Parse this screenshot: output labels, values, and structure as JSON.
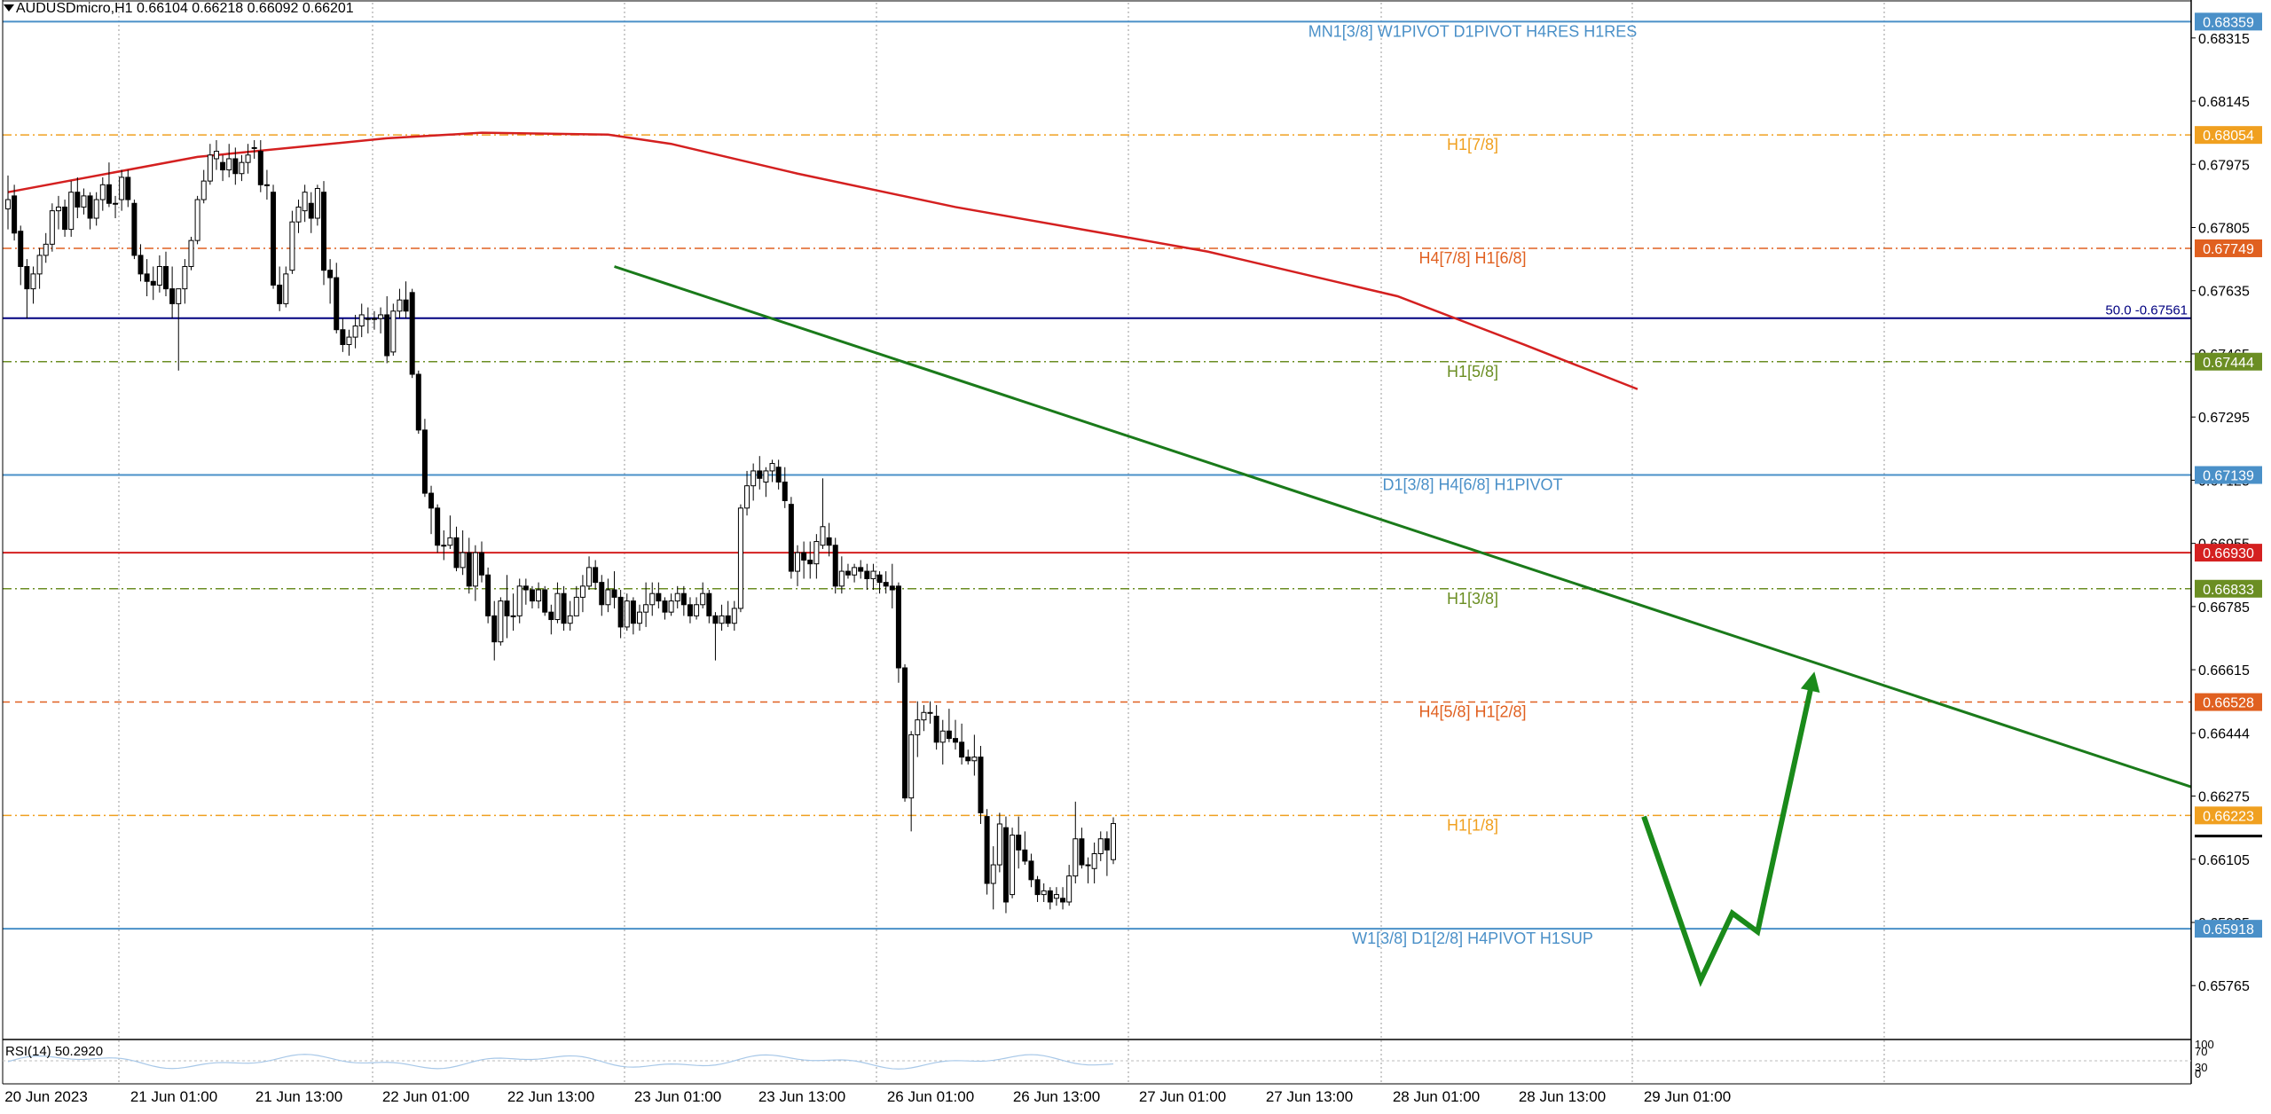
{
  "header": {
    "symbol_info": "AUDUSDmicro,H1  0.66104 0.66218 0.66092 0.66201"
  },
  "rsi_panel": {
    "label": "RSI(14) 50.2920",
    "scale_labels": [
      "100",
      "70",
      "30",
      "0"
    ]
  },
  "chart_data": {
    "type": "candlestick",
    "symbol": "AUDUSDmicro",
    "timeframe": "H1",
    "ylim": [
      0.6562,
      0.6841
    ],
    "y_ticks": [
      "0.68315",
      "0.68145",
      "0.67975",
      "0.67805",
      "0.67635",
      "0.67465",
      "0.67295",
      "0.67125",
      "0.66955",
      "0.66785",
      "0.66615",
      "0.66444",
      "0.66275",
      "0.66105",
      "0.65935",
      "0.65765"
    ],
    "x_ticks": [
      "20 Jun 2023",
      "21 Jun 01:00",
      "21 Jun 13:00",
      "22 Jun 01:00",
      "22 Jun 13:00",
      "23 Jun 01:00",
      "23 Jun 13:00",
      "26 Jun 01:00",
      "26 Jun 13:00",
      "27 Jun 01:00",
      "27 Jun 13:00",
      "28 Jun 01:00",
      "28 Jun 13:00",
      "29 Jun 01:00"
    ],
    "levels": [
      {
        "price": 0.68359,
        "price_label": "0.68359",
        "label": "MN1[3/8] W1PIVOT D1PIVOT H4RES H1RES",
        "color": "#4a90c8",
        "style": "solid"
      },
      {
        "price": 0.68054,
        "price_label": "0.68054",
        "label": "H1[7/8]",
        "color": "#f0a020",
        "style": "dashdot"
      },
      {
        "price": 0.67749,
        "price_label": "0.67749",
        "label": "H4[7/8] H1[6/8]",
        "color": "#e06020",
        "style": "dashdot"
      },
      {
        "price": 0.67561,
        "price_label": "",
        "label": "50.0 -0.67561",
        "color": "#000080",
        "style": "solid"
      },
      {
        "price": 0.67444,
        "price_label": "0.67444",
        "label": "H1[5/8]",
        "color": "#6b8e23",
        "style": "dashdot"
      },
      {
        "price": 0.67139,
        "price_label": "0.67139",
        "label": "D1[3/8] H4[6/8] H1PIVOT",
        "color": "#4a90c8",
        "style": "solid"
      },
      {
        "price": 0.6693,
        "price_label": "0.66930",
        "label": "",
        "color": "#d42020",
        "style": "solid"
      },
      {
        "price": 0.66833,
        "price_label": "0.66833",
        "label": "H1[3/8]",
        "color": "#6b8e23",
        "style": "dashdot"
      },
      {
        "price": 0.66528,
        "price_label": "0.66528",
        "label": "H4[5/8] H1[2/8]",
        "color": "#e06020",
        "style": "dashed"
      },
      {
        "price": 0.66223,
        "price_label": "0.66223",
        "label": "H1[1/8]",
        "color": "#f0a020",
        "style": "dashdot"
      },
      {
        "price": 0.65918,
        "price_label": "0.65918",
        "label": "W1[3/8] D1[2/8] H4PIVOT H1SUP",
        "color": "#4a90c8",
        "style": "solid"
      }
    ],
    "moving_average": {
      "color": "#d42020",
      "points": [
        [
          0,
          0.679
        ],
        [
          30,
          0.67995
        ],
        [
          60,
          0.68045
        ],
        [
          75,
          0.6806
        ],
        [
          95,
          0.68055
        ],
        [
          105,
          0.6803
        ],
        [
          125,
          0.6795
        ],
        [
          150,
          0.6786
        ],
        [
          170,
          0.678
        ],
        [
          190,
          0.6774
        ],
        [
          220,
          0.6762
        ],
        [
          240,
          0.6749
        ],
        [
          258,
          0.6737
        ]
      ]
    },
    "trendline": {
      "color": "#1a7a1a",
      "points": [
        [
          96,
          0.677
        ],
        [
          326,
          0.6641
        ]
      ]
    },
    "projection": {
      "color": "#1a8a1a",
      "points": [
        [
          259,
          0.6622
        ],
        [
          268,
          0.6578
        ],
        [
          273,
          0.6596
        ],
        [
          277,
          0.6591
        ],
        [
          286,
          0.6661
        ]
      ]
    },
    "candles": [
      [
        0.67855,
        0.67945,
        0.678,
        0.6788
      ],
      [
        0.6789,
        0.6792,
        0.6777,
        0.6779
      ],
      [
        0.67795,
        0.6781,
        0.6765,
        0.677
      ],
      [
        0.677,
        0.6772,
        0.6756,
        0.6764
      ],
      [
        0.6764,
        0.677,
        0.676,
        0.6768
      ],
      [
        0.6768,
        0.6775,
        0.6764,
        0.6773
      ],
      [
        0.6773,
        0.6779,
        0.6771,
        0.6776
      ],
      [
        0.6776,
        0.6787,
        0.6774,
        0.6785
      ],
      [
        0.6785,
        0.6789,
        0.678,
        0.6786
      ],
      [
        0.6786,
        0.6788,
        0.6778,
        0.678
      ],
      [
        0.678,
        0.6793,
        0.6778,
        0.679
      ],
      [
        0.679,
        0.6794,
        0.6783,
        0.6786
      ],
      [
        0.6786,
        0.6791,
        0.6784,
        0.6789
      ],
      [
        0.6789,
        0.679,
        0.678,
        0.6783
      ],
      [
        0.6783,
        0.679,
        0.6781,
        0.6788
      ],
      [
        0.6788,
        0.6794,
        0.6785,
        0.6792
      ],
      [
        0.6792,
        0.6798,
        0.6786,
        0.6787
      ],
      [
        0.6787,
        0.6789,
        0.6783,
        0.6787
      ],
      [
        0.6788,
        0.6796,
        0.6785,
        0.6794
      ],
      [
        0.6794,
        0.6796,
        0.6786,
        0.6788
      ],
      [
        0.6787,
        0.6788,
        0.6772,
        0.6773
      ],
      [
        0.6773,
        0.6776,
        0.6766,
        0.6768
      ],
      [
        0.6768,
        0.6772,
        0.6762,
        0.6766
      ],
      [
        0.6766,
        0.677,
        0.6761,
        0.6765
      ],
      [
        0.6765,
        0.6773,
        0.6763,
        0.677
      ],
      [
        0.677,
        0.6774,
        0.6762,
        0.6764
      ],
      [
        0.6764,
        0.677,
        0.6756,
        0.676
      ],
      [
        0.676,
        0.6764,
        0.6742,
        0.6764
      ],
      [
        0.6764,
        0.6772,
        0.676,
        0.677
      ],
      [
        0.677,
        0.6778,
        0.6769,
        0.6777
      ],
      [
        0.6777,
        0.6789,
        0.6776,
        0.6788
      ],
      [
        0.6788,
        0.6796,
        0.6787,
        0.6793
      ],
      [
        0.6793,
        0.6803,
        0.6792,
        0.68
      ],
      [
        0.6799,
        0.6804,
        0.6796,
        0.6801
      ],
      [
        0.6798,
        0.68,
        0.6793,
        0.6796
      ],
      [
        0.6796,
        0.6803,
        0.6794,
        0.6799
      ],
      [
        0.6799,
        0.6802,
        0.6792,
        0.6795
      ],
      [
        0.6795,
        0.68,
        0.6793,
        0.6798
      ],
      [
        0.6798,
        0.6803,
        0.6795,
        0.68
      ],
      [
        0.6802,
        0.6804,
        0.6799,
        0.6802
      ],
      [
        0.6801,
        0.6804,
        0.679,
        0.6792
      ],
      [
        0.6792,
        0.6796,
        0.6788,
        0.6792
      ],
      [
        0.679,
        0.6792,
        0.6764,
        0.6765
      ],
      [
        0.6765,
        0.677,
        0.6758,
        0.676
      ],
      [
        0.676,
        0.677,
        0.6759,
        0.6768
      ],
      [
        0.6769,
        0.6785,
        0.6768,
        0.6782
      ],
      [
        0.6782,
        0.6788,
        0.6779,
        0.6786
      ],
      [
        0.6785,
        0.6792,
        0.6782,
        0.679
      ],
      [
        0.6787,
        0.679,
        0.6779,
        0.6783
      ],
      [
        0.6783,
        0.6792,
        0.6781,
        0.6791
      ],
      [
        0.679,
        0.6793,
        0.6765,
        0.6769
      ],
      [
        0.6769,
        0.6772,
        0.676,
        0.6767
      ],
      [
        0.6767,
        0.6771,
        0.6752,
        0.6753
      ],
      [
        0.6753,
        0.6756,
        0.6747,
        0.6749
      ],
      [
        0.6749,
        0.6753,
        0.6746,
        0.6751
      ],
      [
        0.6751,
        0.6757,
        0.6748,
        0.6754
      ],
      [
        0.6754,
        0.676,
        0.6751,
        0.6757
      ],
      [
        0.6756,
        0.6759,
        0.6752,
        0.6756
      ],
      [
        0.6756,
        0.6758,
        0.6753,
        0.6756
      ],
      [
        0.6756,
        0.6759,
        0.6752,
        0.6757
      ],
      [
        0.6757,
        0.6762,
        0.6744,
        0.6746
      ],
      [
        0.6747,
        0.676,
        0.6746,
        0.6758
      ],
      [
        0.6758,
        0.6764,
        0.6756,
        0.6761
      ],
      [
        0.6761,
        0.6766,
        0.6756,
        0.6758
      ],
      [
        0.6763,
        0.6764,
        0.674,
        0.6741
      ],
      [
        0.6741,
        0.6742,
        0.6725,
        0.6726
      ],
      [
        0.6726,
        0.6729,
        0.6708,
        0.6709
      ],
      [
        0.6709,
        0.6711,
        0.6698,
        0.6705
      ],
      [
        0.6705,
        0.6706,
        0.6693,
        0.6695
      ],
      [
        0.6695,
        0.6699,
        0.6691,
        0.6695
      ],
      [
        0.6695,
        0.6703,
        0.6694,
        0.6697
      ],
      [
        0.6697,
        0.67,
        0.6688,
        0.6689
      ],
      [
        0.6689,
        0.6699,
        0.6687,
        0.6693
      ],
      [
        0.6693,
        0.6697,
        0.6682,
        0.6684
      ],
      [
        0.6684,
        0.6695,
        0.668,
        0.6693
      ],
      [
        0.6693,
        0.6696,
        0.6685,
        0.6687
      ],
      [
        0.6687,
        0.6689,
        0.6674,
        0.6676
      ],
      [
        0.6676,
        0.668,
        0.6664,
        0.6669
      ],
      [
        0.6669,
        0.6681,
        0.6668,
        0.668
      ],
      [
        0.668,
        0.6687,
        0.667,
        0.6676
      ],
      [
        0.6676,
        0.6682,
        0.6672,
        0.6676
      ],
      [
        0.6676,
        0.6686,
        0.6674,
        0.6684
      ],
      [
        0.6684,
        0.6686,
        0.6679,
        0.6683
      ],
      [
        0.6683,
        0.6684,
        0.6678,
        0.668
      ],
      [
        0.668,
        0.6685,
        0.6678,
        0.6683
      ],
      [
        0.6683,
        0.6684,
        0.6676,
        0.6677
      ],
      [
        0.6677,
        0.6679,
        0.6671,
        0.6675
      ],
      [
        0.6675,
        0.6685,
        0.6674,
        0.6682
      ],
      [
        0.6682,
        0.6684,
        0.6672,
        0.6674
      ],
      [
        0.6674,
        0.668,
        0.6672,
        0.6676
      ],
      [
        0.6676,
        0.6684,
        0.6676,
        0.6681
      ],
      [
        0.6681,
        0.6687,
        0.6677,
        0.6684
      ],
      [
        0.6684,
        0.6692,
        0.6683,
        0.6689
      ],
      [
        0.6689,
        0.6691,
        0.6683,
        0.6685
      ],
      [
        0.6685,
        0.6687,
        0.6676,
        0.6679
      ],
      [
        0.6679,
        0.6686,
        0.6677,
        0.6683
      ],
      [
        0.6683,
        0.6688,
        0.6678,
        0.6681
      ],
      [
        0.6681,
        0.6683,
        0.667,
        0.6673
      ],
      [
        0.6673,
        0.6682,
        0.6672,
        0.668
      ],
      [
        0.668,
        0.6681,
        0.6671,
        0.6674
      ],
      [
        0.6674,
        0.6679,
        0.6672,
        0.6677
      ],
      [
        0.6677,
        0.6685,
        0.6673,
        0.6679
      ],
      [
        0.6679,
        0.6685,
        0.6676,
        0.6682
      ],
      [
        0.6682,
        0.6685,
        0.6678,
        0.668
      ],
      [
        0.668,
        0.6681,
        0.6675,
        0.6677
      ],
      [
        0.6677,
        0.6682,
        0.6676,
        0.668
      ],
      [
        0.668,
        0.6684,
        0.6678,
        0.6682
      ],
      [
        0.6682,
        0.6684,
        0.6676,
        0.6679
      ],
      [
        0.6679,
        0.6681,
        0.6674,
        0.6676
      ],
      [
        0.6676,
        0.6681,
        0.6675,
        0.6679
      ],
      [
        0.6679,
        0.6685,
        0.6678,
        0.6682
      ],
      [
        0.6682,
        0.6683,
        0.6674,
        0.6676
      ],
      [
        0.6676,
        0.6677,
        0.6664,
        0.6674
      ],
      [
        0.6674,
        0.6679,
        0.6672,
        0.6676
      ],
      [
        0.6676,
        0.668,
        0.6673,
        0.6674
      ],
      [
        0.6674,
        0.668,
        0.6672,
        0.6678
      ],
      [
        0.6678,
        0.6706,
        0.6677,
        0.6705
      ],
      [
        0.6705,
        0.6715,
        0.6703,
        0.6711
      ],
      [
        0.6711,
        0.6717,
        0.6707,
        0.6715
      ],
      [
        0.6715,
        0.6719,
        0.671,
        0.6713
      ],
      [
        0.6712,
        0.6716,
        0.6708,
        0.6715
      ],
      [
        0.6715,
        0.6718,
        0.6712,
        0.6717
      ],
      [
        0.6716,
        0.6718,
        0.671,
        0.6712
      ],
      [
        0.6712,
        0.6716,
        0.6705,
        0.6707
      ],
      [
        0.6706,
        0.6708,
        0.6686,
        0.6688
      ],
      [
        0.6688,
        0.6695,
        0.6684,
        0.6693
      ],
      [
        0.6693,
        0.6696,
        0.6686,
        0.6691
      ],
      [
        0.6691,
        0.6696,
        0.6686,
        0.669
      ],
      [
        0.669,
        0.6698,
        0.6686,
        0.6696
      ],
      [
        0.6695,
        0.6713,
        0.6694,
        0.67
      ],
      [
        0.6697,
        0.6701,
        0.6692,
        0.6695
      ],
      [
        0.6695,
        0.6697,
        0.6682,
        0.6684
      ],
      [
        0.6684,
        0.6692,
        0.6682,
        0.6688
      ],
      [
        0.6688,
        0.669,
        0.6686,
        0.6687
      ],
      [
        0.6687,
        0.669,
        0.6685,
        0.6689
      ],
      [
        0.6689,
        0.6691,
        0.6686,
        0.6688
      ],
      [
        0.6688,
        0.669,
        0.6683,
        0.6686
      ],
      [
        0.6686,
        0.669,
        0.6683,
        0.6688
      ],
      [
        0.6687,
        0.6688,
        0.6682,
        0.6685
      ],
      [
        0.6685,
        0.6688,
        0.6682,
        0.6684
      ],
      [
        0.6684,
        0.669,
        0.6678,
        0.6683
      ],
      [
        0.6684,
        0.6685,
        0.6658,
        0.6662
      ],
      [
        0.6662,
        0.6663,
        0.6626,
        0.6627
      ],
      [
        0.6627,
        0.6645,
        0.6618,
        0.6644
      ],
      [
        0.6644,
        0.6653,
        0.6638,
        0.6648
      ],
      [
        0.6648,
        0.6652,
        0.6645,
        0.665
      ],
      [
        0.665,
        0.6653,
        0.6647,
        0.665
      ],
      [
        0.6649,
        0.6652,
        0.664,
        0.6642
      ],
      [
        0.6642,
        0.6648,
        0.6636,
        0.6645
      ],
      [
        0.6645,
        0.6651,
        0.6642,
        0.6643
      ],
      [
        0.6643,
        0.6648,
        0.664,
        0.6642
      ],
      [
        0.6642,
        0.6647,
        0.6636,
        0.6638
      ],
      [
        0.6638,
        0.664,
        0.6636,
        0.6637
      ],
      [
        0.6637,
        0.6644,
        0.6633,
        0.6638
      ],
      [
        0.6638,
        0.6641,
        0.662,
        0.6623
      ],
      [
        0.6622,
        0.6624,
        0.6601,
        0.6604
      ],
      [
        0.6604,
        0.6614,
        0.6597,
        0.6609
      ],
      [
        0.6609,
        0.6623,
        0.6607,
        0.662
      ],
      [
        0.6619,
        0.6622,
        0.6596,
        0.6599
      ],
      [
        0.6601,
        0.6619,
        0.66,
        0.6617
      ],
      [
        0.6617,
        0.6622,
        0.6608,
        0.6613
      ],
      [
        0.6613,
        0.6618,
        0.6609,
        0.661
      ],
      [
        0.661,
        0.6612,
        0.6603,
        0.6605
      ],
      [
        0.6605,
        0.6606,
        0.6599,
        0.6601
      ],
      [
        0.6601,
        0.6604,
        0.6599,
        0.6602
      ],
      [
        0.6602,
        0.6603,
        0.6597,
        0.6599
      ],
      [
        0.66,
        0.6603,
        0.6598,
        0.6601
      ],
      [
        0.66,
        0.6603,
        0.6597,
        0.6599
      ],
      [
        0.6599,
        0.6609,
        0.6598,
        0.6606
      ],
      [
        0.6606,
        0.6626,
        0.6604,
        0.6616
      ],
      [
        0.6616,
        0.6619,
        0.6608,
        0.6609
      ],
      [
        0.6609,
        0.6611,
        0.6604,
        0.6609
      ],
      [
        0.6608,
        0.6615,
        0.6604,
        0.6612
      ],
      [
        0.6612,
        0.6618,
        0.661,
        0.6616
      ],
      [
        0.6616,
        0.6618,
        0.6606,
        0.6613
      ],
      [
        0.66104,
        0.66218,
        0.66092,
        0.66201
      ]
    ]
  }
}
